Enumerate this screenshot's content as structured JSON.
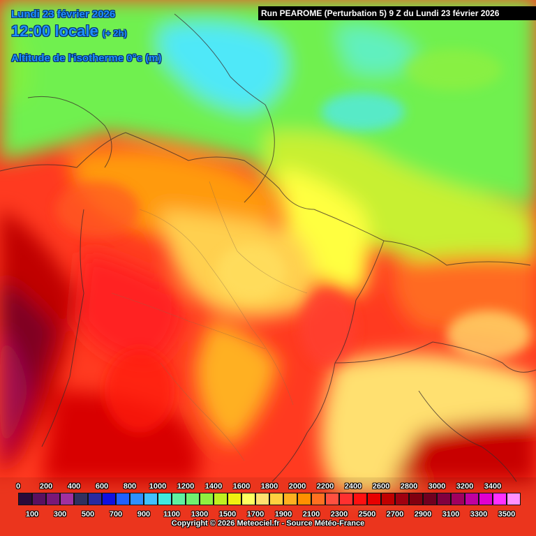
{
  "map": {
    "date": "Lundi 23 février 2026",
    "time": "12:00 locale",
    "time_offset": "(+ 2h)",
    "parameter": "Altitude de l'isotherme 0°c (m)",
    "run_banner": "Run PEAROME (Perturbation 5) 9 Z du Lundi 23 février 2026",
    "copyright": "Copyright © 2026 Meteociel.fr - Source Météo-France"
  },
  "legend": {
    "upper_ticks": [
      "0",
      "200",
      "400",
      "600",
      "800",
      "1000",
      "1200",
      "1400",
      "1600",
      "1800",
      "2000",
      "2200",
      "2400",
      "2600",
      "2800",
      "3000",
      "3200",
      "3400"
    ],
    "lower_ticks": [
      "100",
      "300",
      "500",
      "700",
      "900",
      "1100",
      "1300",
      "1500",
      "1700",
      "1900",
      "2100",
      "2300",
      "2500",
      "2700",
      "2900",
      "3100",
      "3300",
      "3500"
    ],
    "colors": [
      "#2a0a3a",
      "#5a1060",
      "#7a1878",
      "#a030a0",
      "#303060",
      "#2a2aa0",
      "#1010e0",
      "#2060ff",
      "#3090ff",
      "#40c0ff",
      "#40e8e0",
      "#60f0a0",
      "#70f070",
      "#90f040",
      "#c0f020",
      "#f0f010",
      "#ffff60",
      "#ffe070",
      "#ffd040",
      "#ffb020",
      "#ff9000",
      "#ff7020",
      "#ff5040",
      "#ff3030",
      "#ff1010",
      "#e80000",
      "#c00000",
      "#a00010",
      "#800010",
      "#700020",
      "#800040",
      "#a00060",
      "#c000a0",
      "#e000d0",
      "#ff30ff",
      "#ff90ff"
    ]
  }
}
